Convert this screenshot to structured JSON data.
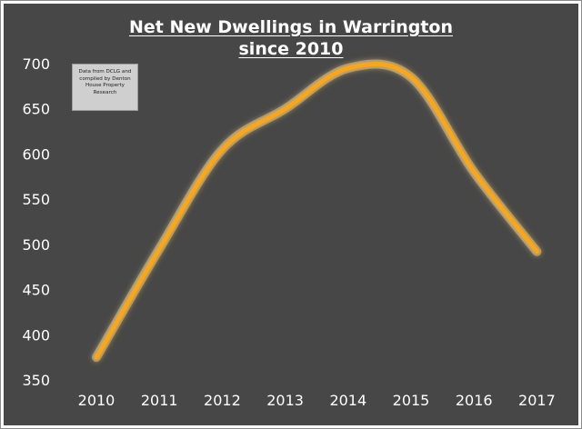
{
  "chart_data": {
    "type": "line",
    "title_line1": "Net New Dwellings in Warrington",
    "title_line2": "since 2010",
    "annotation": "Data from DCLG and\ncompiled by Denton\nHouse Property\nResearch",
    "xlabel": "",
    "ylabel": "",
    "x": [
      "2010",
      "2011",
      "2012",
      "2013",
      "2014",
      "2015",
      "2016",
      "2017"
    ],
    "values": [
      375,
      495,
      605,
      650,
      695,
      685,
      580,
      492
    ],
    "yticks": [
      350,
      400,
      450,
      500,
      550,
      600,
      650,
      700
    ],
    "ylim": [
      350,
      700
    ],
    "grid": false,
    "smooth": true,
    "colors": {
      "background": "#474747",
      "line": "#f5a623",
      "glow": "#ffd27a",
      "text": "#ffffff"
    }
  }
}
